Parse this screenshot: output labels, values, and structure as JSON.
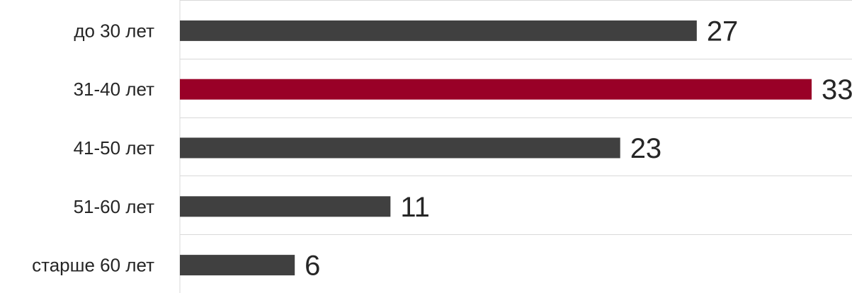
{
  "chart_data": {
    "type": "bar",
    "orientation": "horizontal",
    "categories": [
      "до 30 лет",
      "31-40 лет",
      "41-50 лет",
      "51-60 лет",
      "старше 60 лет"
    ],
    "values": [
      27,
      33,
      23,
      11,
      6
    ],
    "highlight_index": 1,
    "colors": {
      "bar": "#404040",
      "highlight": "#990027",
      "grid": "#d9d9d9",
      "text": "#262626"
    },
    "xlim": [
      0,
      33
    ],
    "grid": true,
    "legend": "none",
    "title": "",
    "xlabel": "",
    "ylabel": ""
  }
}
